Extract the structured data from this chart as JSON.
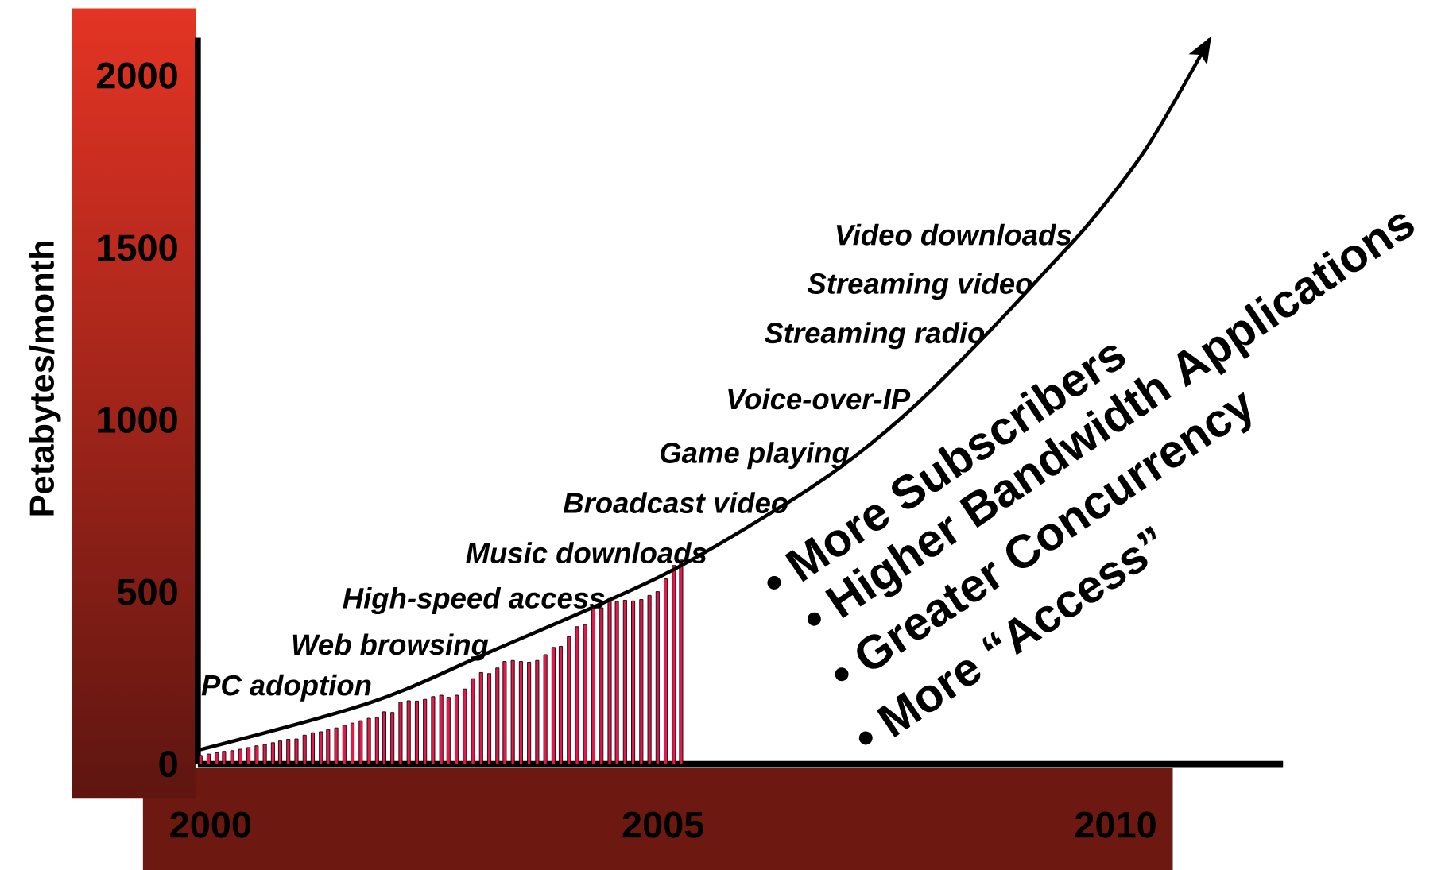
{
  "chart_data": {
    "type": "bar",
    "ylabel": "Petabytes/month",
    "xlim": [
      1999.86,
      2011.85
    ],
    "ylim": [
      0,
      2110
    ],
    "xticks": [
      2000,
      2005,
      2010
    ],
    "yticks": [
      0,
      500,
      1000,
      1500,
      2000
    ],
    "grid": false,
    "series": [
      {
        "color": "#e8174a",
        "x": [
          1999.89,
          1999.98,
          2000.07,
          2000.15,
          2000.24,
          2000.33,
          2000.42,
          2000.51,
          2000.6,
          2000.69,
          2000.77,
          2000.86,
          2000.95,
          2001.04,
          2001.13,
          2001.22,
          2001.3,
          2001.39,
          2001.48,
          2001.57,
          2001.66,
          2001.75,
          2001.84,
          2001.92,
          2002.01,
          2002.1,
          2002.19,
          2002.28,
          2002.37,
          2002.46,
          2002.55,
          2002.63,
          2002.72,
          2002.81,
          2002.9,
          2002.99,
          2003.08,
          2003.17,
          2003.25,
          2003.34,
          2003.43,
          2003.52,
          2003.61,
          2003.7,
          2003.79,
          2003.87,
          2003.96,
          2004.05,
          2004.14,
          2004.23,
          2004.32,
          2004.41,
          2004.49,
          2004.58,
          2004.67,
          2004.76,
          2004.85,
          2004.94,
          2005.03,
          2005.12,
          2005.2
        ],
        "values": [
          25,
          29,
          33,
          37,
          39,
          43,
          48,
          53,
          57,
          62,
          67,
          72,
          73,
          84,
          91,
          94,
          100,
          105,
          113,
          119,
          126,
          133,
          135,
          152,
          150,
          180,
          184,
          183,
          188,
          196,
          200,
          194,
          200,
          218,
          248,
          266,
          263,
          279,
          298,
          301,
          298,
          296,
          301,
          318,
          339,
          342,
          370,
          399,
          405,
          454,
          454,
          481,
          472,
          476,
          474,
          478,
          490,
          501,
          538,
          577,
          593
        ]
      },
      {
        "type": "line",
        "color": "#000000",
        "x": [
          1999.86,
          2001.77,
          2003.08,
          2005.0,
          2006.41,
          2007.11,
          2007.82,
          2008.62,
          2009.23,
          2009.73,
          2010.34,
          2011.04
        ],
        "values": [
          40,
          179,
          325,
          549,
          765,
          892,
          1050,
          1261,
          1433,
          1578,
          1789,
          2106
        ]
      }
    ],
    "annotations": [
      "PC adoption",
      "Web browsing",
      "High-speed access",
      "Music downloads",
      "Broadcast video",
      "Game playing",
      "Voice-over-IP",
      "Streaming radio",
      "Streaming video",
      "Video downloads",
      "• More Subscribers",
      "• Higher Bandwidth Applications",
      "• Greater Concurrency",
      "• More “Access”"
    ]
  }
}
